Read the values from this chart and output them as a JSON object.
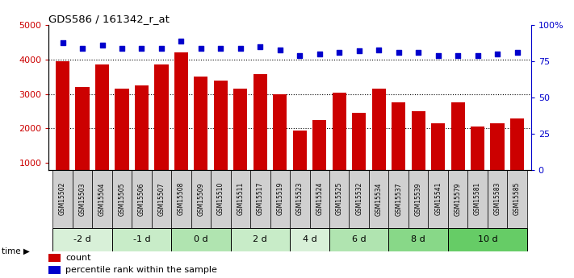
{
  "title": "GDS586 / 161342_r_at",
  "samples": [
    "GSM15502",
    "GSM15503",
    "GSM15504",
    "GSM15505",
    "GSM15506",
    "GSM15507",
    "GSM15508",
    "GSM15509",
    "GSM15510",
    "GSM15511",
    "GSM15517",
    "GSM15519",
    "GSM15523",
    "GSM15524",
    "GSM15525",
    "GSM15532",
    "GSM15534",
    "GSM15537",
    "GSM15539",
    "GSM15541",
    "GSM15579",
    "GSM15581",
    "GSM15583",
    "GSM15585"
  ],
  "counts": [
    3950,
    3200,
    3850,
    3150,
    3250,
    3850,
    4200,
    3500,
    3400,
    3150,
    3580,
    3000,
    1950,
    2250,
    3050,
    2450,
    3150,
    2750,
    2500,
    2150,
    2750,
    2050,
    2150,
    2300
  ],
  "percentiles": [
    88,
    84,
    86,
    84,
    84,
    84,
    89,
    84,
    84,
    84,
    85,
    83,
    79,
    80,
    81,
    82,
    83,
    81,
    81,
    79,
    79,
    79,
    80,
    81
  ],
  "time_groups": [
    {
      "label": "-2 d",
      "start": 0,
      "end": 3,
      "color": "#d8f0d8"
    },
    {
      "label": "-1 d",
      "start": 3,
      "end": 6,
      "color": "#c8ecc8"
    },
    {
      "label": "0 d",
      "start": 6,
      "end": 9,
      "color": "#b0e4b0"
    },
    {
      "label": "2 d",
      "start": 9,
      "end": 12,
      "color": "#c8ecc8"
    },
    {
      "label": "4 d",
      "start": 12,
      "end": 14,
      "color": "#d8f0d8"
    },
    {
      "label": "6 d",
      "start": 14,
      "end": 17,
      "color": "#b0e4b0"
    },
    {
      "label": "8 d",
      "start": 17,
      "end": 20,
      "color": "#88d888"
    },
    {
      "label": "10 d",
      "start": 20,
      "end": 24,
      "color": "#66cc66"
    }
  ],
  "bar_color": "#cc0000",
  "dot_color": "#0000cc",
  "ylim_left": [
    800,
    5000
  ],
  "ylim_right": [
    0,
    100
  ],
  "yticks_left": [
    1000,
    2000,
    3000,
    4000,
    5000
  ],
  "yticks_right": [
    0,
    25,
    50,
    75,
    100
  ],
  "grid_values": [
    2000,
    3000,
    4000
  ],
  "bg_color": "#ffffff",
  "tick_label_color_left": "#cc0000",
  "tick_label_color_right": "#0000cc",
  "sample_box_color": "#d0d0d0"
}
